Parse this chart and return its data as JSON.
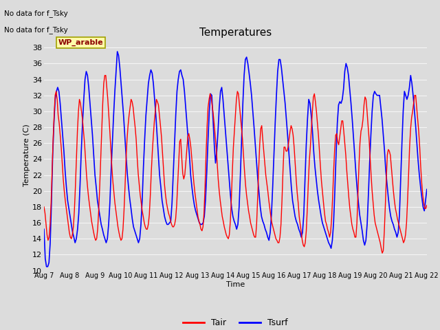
{
  "title": "Temperatures",
  "xlabel": "Time",
  "ylabel": "Temperature (C)",
  "ylim": [
    10,
    39
  ],
  "xlim": [
    0,
    15
  ],
  "annotations_line1": "No data for f_Tsky",
  "annotations_line2": "No data for f_Tsky",
  "box_label": "WP_arable",
  "xtick_labels": [
    "Aug 7",
    "Aug 8",
    "Aug 9",
    "Aug 10",
    "Aug 11",
    "Aug 12",
    "Aug 13",
    "Aug 14",
    "Aug 15",
    "Aug 16",
    "Aug 17",
    "Aug 18",
    "Aug 19",
    "Aug 20",
    "Aug 21",
    "Aug 22"
  ],
  "ytick_values": [
    10,
    12,
    14,
    16,
    18,
    20,
    22,
    24,
    26,
    28,
    30,
    32,
    34,
    36,
    38
  ],
  "line_tair_color": "#FF0000",
  "line_tsurf_color": "#0000FF",
  "plot_bg_color": "#DCDCDC",
  "grid_color": "#F5F5F5",
  "fig_bg_color": "#DCDCDC",
  "tair": [
    18.0,
    17.2,
    15.8,
    14.5,
    13.8,
    14.2,
    15.8,
    18.5,
    22.5,
    26.5,
    29.5,
    32.0,
    32.5,
    31.5,
    29.5,
    28.5,
    27.0,
    25.5,
    23.5,
    21.5,
    20.0,
    18.8,
    17.8,
    16.8,
    15.8,
    14.8,
    14.2,
    14.0,
    14.5,
    15.5,
    17.5,
    20.5,
    24.0,
    27.5,
    30.0,
    31.5,
    31.0,
    30.0,
    29.0,
    27.5,
    26.0,
    24.0,
    22.0,
    20.5,
    19.2,
    18.2,
    17.2,
    16.2,
    15.5,
    14.8,
    14.2,
    13.8,
    14.0,
    15.2,
    17.5,
    20.5,
    24.0,
    27.5,
    31.0,
    33.5,
    34.5,
    34.5,
    33.0,
    31.5,
    29.5,
    27.5,
    25.2,
    23.0,
    21.2,
    19.8,
    18.5,
    17.5,
    16.5,
    15.5,
    14.8,
    14.2,
    13.8,
    14.0,
    15.2,
    17.5,
    20.5,
    24.0,
    26.5,
    28.2,
    29.5,
    30.5,
    31.5,
    31.2,
    30.5,
    29.2,
    28.0,
    26.5,
    24.2,
    22.2,
    20.8,
    19.5,
    18.5,
    17.5,
    16.8,
    16.0,
    15.5,
    15.2,
    15.2,
    15.8,
    17.0,
    19.5,
    22.5,
    25.0,
    27.0,
    28.8,
    30.2,
    31.5,
    31.2,
    30.8,
    29.5,
    28.2,
    26.8,
    24.8,
    22.8,
    20.8,
    19.5,
    18.5,
    17.8,
    17.2,
    16.8,
    16.2,
    15.8,
    15.5,
    15.5,
    15.8,
    16.5,
    18.2,
    20.8,
    23.5,
    26.2,
    26.5,
    24.2,
    22.2,
    21.5,
    22.0,
    23.5,
    25.2,
    26.8,
    27.2,
    26.5,
    25.5,
    24.0,
    22.5,
    21.0,
    19.8,
    18.8,
    17.8,
    16.8,
    16.2,
    15.8,
    15.2,
    15.0,
    15.5,
    17.2,
    20.5,
    24.5,
    28.0,
    30.5,
    31.5,
    32.2,
    31.8,
    30.8,
    29.8,
    28.5,
    27.0,
    25.5,
    23.5,
    21.5,
    20.0,
    18.8,
    17.8,
    16.8,
    16.2,
    15.5,
    15.0,
    14.5,
    14.2,
    14.0,
    14.5,
    16.2,
    19.0,
    22.5,
    25.5,
    27.5,
    29.5,
    31.5,
    32.5,
    32.2,
    30.8,
    29.5,
    28.0,
    26.5,
    24.5,
    22.5,
    20.8,
    19.5,
    18.5,
    17.5,
    16.8,
    16.0,
    15.5,
    15.0,
    14.5,
    14.2,
    14.2,
    16.0,
    19.2,
    22.8,
    25.8,
    27.8,
    28.2,
    26.5,
    25.0,
    23.5,
    22.0,
    21.0,
    20.0,
    18.8,
    17.8,
    16.8,
    16.0,
    15.5,
    15.0,
    14.5,
    14.0,
    13.8,
    13.5,
    13.5,
    14.2,
    15.8,
    18.8,
    22.5,
    25.5,
    25.5,
    25.0,
    25.0,
    25.5,
    26.5,
    27.5,
    28.2,
    27.8,
    27.0,
    25.5,
    23.5,
    21.5,
    19.8,
    18.5,
    16.8,
    15.8,
    14.8,
    13.8,
    13.2,
    13.0,
    13.5,
    15.0,
    17.8,
    21.0,
    23.8,
    25.5,
    27.8,
    30.0,
    31.8,
    32.2,
    31.2,
    30.0,
    28.5,
    27.0,
    25.0,
    23.0,
    21.2,
    19.8,
    18.5,
    17.2,
    16.2,
    15.8,
    15.2,
    14.8,
    14.2,
    14.8,
    16.5,
    19.2,
    22.5,
    25.2,
    27.0,
    27.2,
    26.2,
    25.8,
    26.8,
    27.8,
    28.8,
    28.8,
    27.5,
    26.0,
    24.5,
    22.5,
    20.8,
    19.2,
    17.8,
    16.8,
    15.8,
    15.2,
    14.8,
    14.2,
    14.2,
    16.0,
    19.5,
    23.2,
    26.0,
    27.5,
    28.0,
    29.0,
    30.8,
    31.8,
    31.5,
    30.0,
    28.2,
    26.5,
    24.2,
    22.0,
    20.0,
    18.5,
    17.0,
    16.0,
    15.5,
    15.0,
    14.5,
    14.0,
    13.5,
    12.8,
    12.2,
    12.5,
    14.8,
    18.0,
    21.5,
    24.5,
    25.2,
    25.0,
    24.5,
    23.0,
    21.5,
    20.0,
    18.8,
    17.8,
    17.2,
    16.5,
    16.0,
    15.5,
    15.0,
    14.5,
    14.0,
    13.5,
    13.8,
    14.5,
    16.0,
    18.8,
    22.0,
    25.5,
    27.8,
    29.2,
    30.0,
    31.0,
    32.0,
    32.0,
    30.5,
    29.0,
    27.5,
    25.5,
    23.0,
    21.0,
    19.5,
    18.5,
    17.8,
    17.8,
    18.2
  ],
  "tsurf": [
    15.2,
    11.5,
    10.5,
    10.5,
    11.0,
    13.5,
    18.5,
    24.5,
    28.5,
    31.5,
    32.5,
    33.0,
    32.5,
    31.0,
    29.0,
    27.0,
    25.0,
    22.5,
    20.5,
    18.8,
    17.8,
    16.8,
    15.8,
    14.8,
    14.2,
    13.5,
    14.0,
    15.2,
    17.2,
    20.8,
    25.0,
    28.5,
    31.5,
    34.0,
    35.0,
    34.5,
    33.0,
    31.0,
    29.0,
    27.0,
    24.5,
    22.0,
    20.5,
    18.8,
    17.8,
    16.8,
    15.8,
    15.2,
    14.5,
    14.0,
    13.5,
    14.0,
    15.8,
    18.5,
    22.5,
    26.0,
    29.5,
    32.5,
    35.0,
    37.5,
    37.0,
    35.5,
    33.5,
    31.5,
    29.5,
    27.0,
    24.5,
    22.2,
    20.5,
    19.0,
    17.8,
    16.5,
    15.5,
    15.0,
    14.5,
    14.0,
    13.5,
    14.0,
    15.8,
    18.8,
    23.0,
    26.5,
    29.5,
    31.5,
    33.5,
    34.5,
    35.2,
    34.8,
    33.5,
    31.5,
    29.5,
    27.0,
    24.5,
    22.0,
    20.5,
    18.8,
    17.8,
    16.8,
    16.2,
    15.8,
    15.8,
    16.0,
    16.2,
    18.5,
    22.2,
    26.0,
    29.5,
    32.5,
    34.0,
    35.0,
    35.2,
    34.5,
    34.0,
    32.5,
    30.5,
    28.5,
    26.5,
    24.5,
    22.0,
    20.5,
    19.2,
    18.2,
    17.5,
    17.0,
    16.5,
    16.0,
    15.8,
    15.8,
    16.0,
    16.8,
    19.0,
    22.5,
    26.5,
    30.0,
    32.2,
    32.0,
    29.0,
    25.8,
    23.5,
    25.0,
    27.5,
    30.5,
    32.5,
    33.0,
    31.5,
    29.5,
    27.5,
    25.5,
    23.5,
    21.5,
    19.5,
    17.8,
    16.8,
    16.2,
    15.8,
    15.2,
    15.8,
    18.0,
    22.0,
    26.5,
    31.0,
    34.5,
    36.5,
    36.8,
    36.0,
    34.8,
    33.5,
    32.0,
    30.0,
    28.0,
    25.8,
    23.5,
    21.5,
    19.8,
    18.0,
    16.8,
    16.2,
    15.8,
    15.2,
    14.8,
    14.2,
    13.8,
    14.8,
    17.0,
    20.5,
    24.5,
    28.5,
    32.0,
    35.0,
    36.5,
    36.5,
    35.5,
    34.0,
    32.5,
    31.0,
    29.0,
    27.0,
    24.8,
    22.5,
    20.5,
    18.8,
    17.8,
    16.8,
    16.2,
    15.8,
    15.2,
    14.8,
    14.2,
    14.8,
    17.0,
    21.5,
    25.8,
    29.0,
    31.5,
    31.0,
    29.5,
    27.5,
    25.0,
    23.0,
    21.5,
    20.0,
    18.8,
    17.8,
    16.8,
    16.0,
    15.5,
    15.0,
    14.5,
    14.0,
    13.5,
    13.2,
    12.8,
    13.8,
    16.0,
    20.0,
    24.5,
    28.5,
    30.8,
    31.2,
    31.0,
    31.5,
    32.8,
    35.0,
    36.0,
    35.5,
    34.5,
    32.8,
    31.0,
    29.0,
    26.8,
    24.5,
    22.2,
    20.2,
    18.5,
    17.0,
    16.0,
    15.0,
    13.8,
    13.2,
    13.8,
    15.8,
    19.5,
    23.5,
    27.0,
    30.0,
    32.0,
    32.5,
    32.2,
    32.0,
    32.0,
    32.0,
    30.5,
    29.0,
    27.0,
    25.0,
    22.5,
    20.8,
    19.2,
    17.8,
    16.8,
    16.2,
    15.8,
    15.2,
    14.8,
    14.2,
    14.8,
    17.0,
    21.5,
    26.0,
    30.0,
    32.5,
    32.0,
    31.5,
    32.0,
    33.0,
    34.5,
    33.5,
    32.0,
    30.2,
    28.2,
    26.0,
    23.8,
    22.0,
    20.5,
    19.2,
    18.0,
    17.5,
    18.8,
    20.2
  ],
  "legend_tair_label": "Tair",
  "legend_tsurf_label": "Tsurf"
}
